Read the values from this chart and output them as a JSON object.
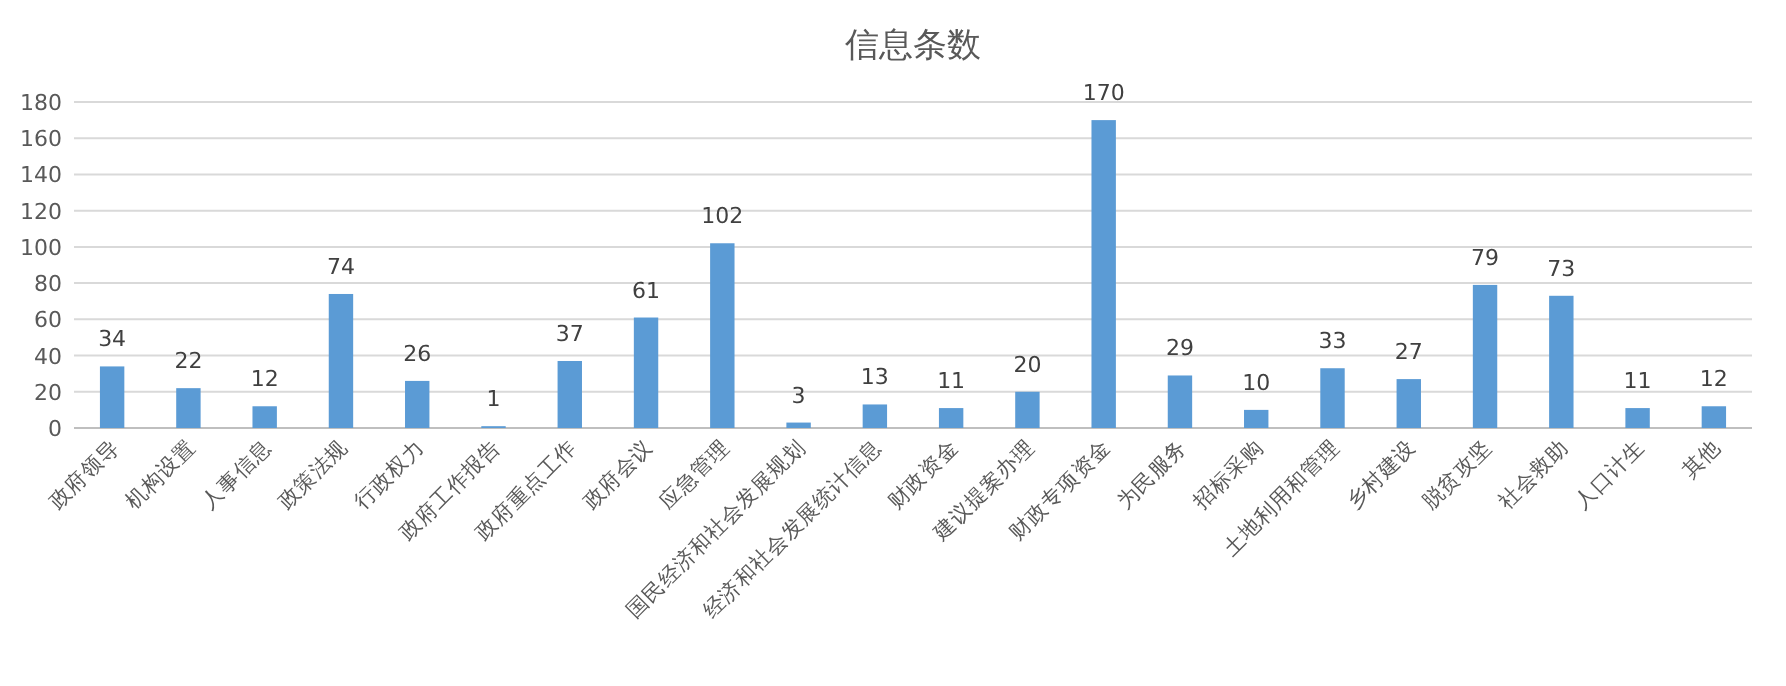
{
  "chart_data": {
    "type": "bar",
    "title": "信息条数",
    "categories": [
      "政府领导",
      "机构设置",
      "人事信息",
      "政策法规",
      "行政权力",
      "政府工作报告",
      "政府重点工作",
      "政府会议",
      "应急管理",
      "国民经济和社会发展规划",
      "经济和社会发展统计信息",
      "财政资金",
      "建议提案办理",
      "财政专项资金",
      "为民服务",
      "招标采购",
      "土地利用和管理",
      "乡村建设",
      "脱贫攻坚",
      "社会救助",
      "人口计生",
      "其他"
    ],
    "values": [
      34,
      22,
      12,
      74,
      26,
      1,
      37,
      61,
      102,
      3,
      13,
      11,
      20,
      170,
      29,
      10,
      33,
      27,
      79,
      73,
      11,
      12
    ],
    "color": "#5b9bd5",
    "ylim": [
      0,
      180
    ],
    "yticks": [
      0,
      20,
      40,
      60,
      80,
      100,
      120,
      140,
      160,
      180
    ],
    "grid": "y",
    "data_labels": true
  }
}
